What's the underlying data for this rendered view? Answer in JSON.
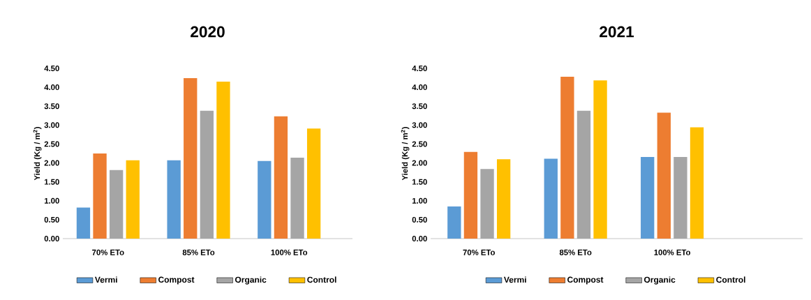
{
  "chart_data": [
    {
      "type": "bar",
      "title": "2020",
      "ylabel": "Yield (Kg / m$^{2}$)",
      "categories": [
        "70% ETo",
        "85% ETo",
        "100% ETo"
      ],
      "series": [
        {
          "name": "Vermi",
          "color": "#5b9bd5",
          "values": [
            0.82,
            2.07,
            2.05
          ]
        },
        {
          "name": "Compost",
          "color": "#ed7d31",
          "values": [
            2.25,
            4.24,
            3.23
          ]
        },
        {
          "name": "Organic",
          "color": "#a5a5a5",
          "values": [
            1.81,
            3.38,
            2.14
          ]
        },
        {
          "name": "Control",
          "color": "#ffc000",
          "values": [
            2.07,
            4.15,
            2.91
          ]
        }
      ],
      "ylim": [
        0,
        4.5
      ],
      "yticks": [
        {
          "value": 0,
          "label": "0.00"
        },
        {
          "value": 0.5,
          "label": "0.50"
        },
        {
          "value": 1,
          "label": "1.00"
        },
        {
          "value": 1.5,
          "label": "1.50"
        },
        {
          "value": 2,
          "label": "2.00"
        },
        {
          "value": 2.5,
          "label": "2.50"
        },
        {
          "value": 3,
          "label": "3.00"
        },
        {
          "value": 3.5,
          "label": "3.50"
        },
        {
          "value": 4,
          "label": "4.00"
        },
        {
          "value": 4.5,
          "label": "4.50"
        }
      ],
      "legend": "bottom"
    },
    {
      "type": "bar",
      "title": "2021",
      "ylabel": "Yield (Kg / m$^{2}$)",
      "categories": [
        "70% ETo",
        "85% ETo",
        "100% ETo"
      ],
      "series": [
        {
          "name": "Vermi",
          "color": "#5b9bd5",
          "values": [
            0.85,
            2.11,
            2.16
          ]
        },
        {
          "name": "Compost",
          "color": "#ed7d31",
          "values": [
            2.29,
            4.28,
            3.33
          ]
        },
        {
          "name": "Organic",
          "color": "#a5a5a5",
          "values": [
            1.84,
            3.38,
            2.16
          ]
        },
        {
          "name": "Control",
          "color": "#ffc000",
          "values": [
            2.1,
            4.18,
            2.94
          ]
        }
      ],
      "ylim": [
        0,
        4.5
      ],
      "yticks": [
        {
          "value": 0,
          "label": "0.00"
        },
        {
          "value": 0.5,
          "label": "0.50"
        },
        {
          "value": 1,
          "label": "1.00"
        },
        {
          "value": 1.5,
          "label": "1.50"
        },
        {
          "value": 2,
          "label": "2.00"
        },
        {
          "value": 2.5,
          "label": "2.50"
        },
        {
          "value": 3,
          "label": "3.00"
        },
        {
          "value": 3.5,
          "label": "3.50"
        },
        {
          "value": 4,
          "label": "4.00"
        },
        {
          "value": 4.5,
          "label": "4.50"
        }
      ],
      "legend": "bottom"
    }
  ]
}
